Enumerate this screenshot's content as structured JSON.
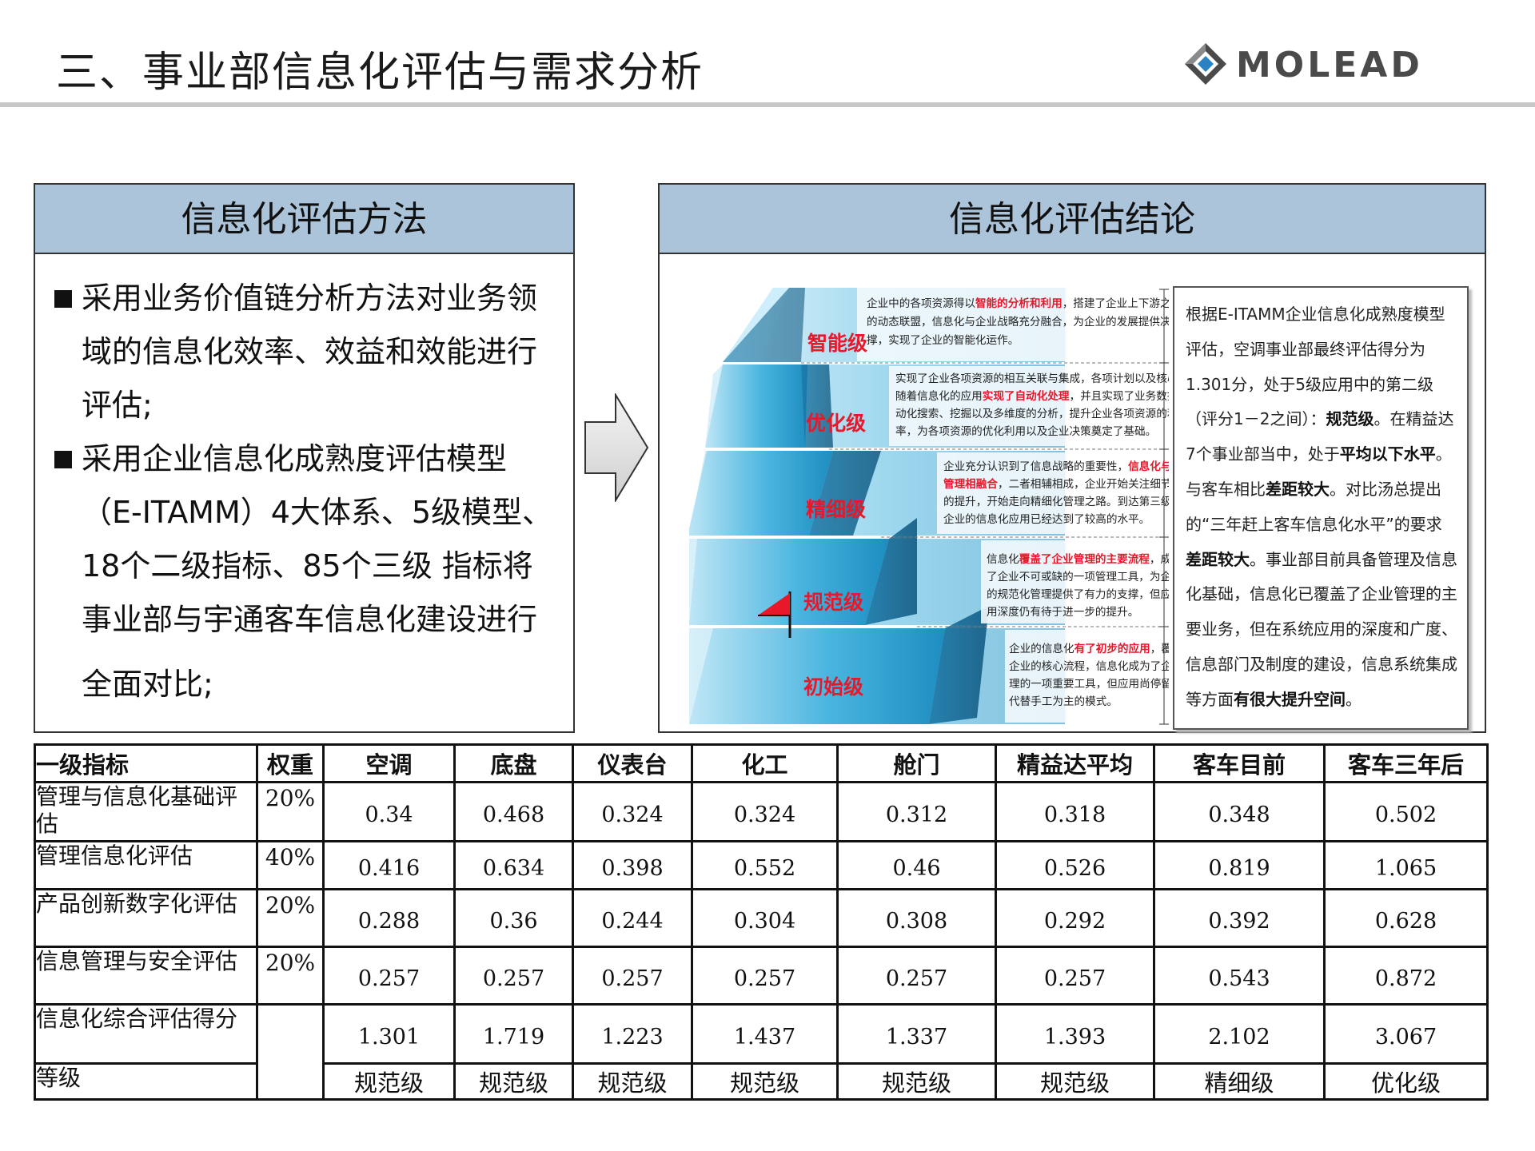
{
  "header": {
    "title": "三、事业部信息化评估与需求分析",
    "logo_text": "MOLEAD"
  },
  "method": {
    "title": "信息化评估方法",
    "bullets": [
      {
        "lines": [
          "采用业务价值链分析方法对业务领",
          "域的信息化效率、效益和效能进行",
          "评估;"
        ]
      },
      {
        "lines": [
          "采用企业信息化成熟度评估模型",
          "（E-ITAMM）4大体系、5级模型、",
          "18个二级指标、85个三级 指标将",
          "事业部与宇通客车信息化建设进行",
          "全面对比;"
        ]
      }
    ]
  },
  "conclusion": {
    "title": "信息化评估结论",
    "pyramid": {
      "levels": [
        {
          "name": "智能级",
          "desc": [
            "企业中的各项资源得以",
            "智能的分析和利用",
            "，搭建了企业上下游之间柔性",
            "的动态联盟，信息化与企业战略充分融合，为企业的发展提供决策支",
            "撑，实现了企业的智能化运作。"
          ]
        },
        {
          "name": "优化级",
          "desc": [
            "实现了企业各项资源的相互关联与集成，各项计划以及核心业务",
            "随着信息化的应用",
            "实现了自动化处理",
            "，并且实现了业务数据的自",
            "动化搜索、挖掘以及多维度的分析，提升企业各项资源的利用",
            "率，为各项资源的优化利用以及企业决策奠定了基础。"
          ]
        },
        {
          "name": "精细级",
          "desc": [
            "企业充分认识到了信息战略的重要性，",
            "信息化与企业",
            "管理相融合",
            "，二者相辅相成，企业开始关注细节管理",
            "的提升，开始走向精细化管理之路。到达第三级后，",
            "企业的信息化应用已经达到了较高的水平。"
          ]
        },
        {
          "name": "规范级",
          "desc": [
            "信息化",
            "覆盖了企业管理的主要流程",
            "，成为",
            "了企业不可或缺的一项管理工具，为企业",
            "的规范化管理提供了有力的支撑，但应",
            "用深度仍有待于进一步的提升。"
          ]
        },
        {
          "name": "初始级",
          "desc": [
            "企业的信息化",
            "有了初步的应用",
            "，覆盖了",
            "企业的核心流程，信息化成为了企业管",
            "理的一项重要工具，但应用尚停留在以",
            "代替手工为主的模式。"
          ]
        }
      ]
    },
    "text": {
      "p1": "根据E-ITAMM企业信息化成熟度模型评估，空调事业部最终评估得分为1.301分，处于5级应用中的第二级（评分1－2之间）：",
      "b1": "规范级",
      "p2": "。在精益达7个事业部当中，处于",
      "b2": "平均以下水平",
      "p3": "。与客车相比",
      "b3": "差距较大",
      "p4": "。对比汤总提出的“三年赶上客车信息化水平”的要求",
      "b4": "差距较大",
      "p5": "。事业部目前具备管理及信息化基础，信息化已覆盖了企业管理的主要业务，但在系统应用的深度和广度、信息部门及制度的建设，信息系统集成等方面",
      "b5": "有很大提升空间",
      "p6": "。"
    }
  },
  "table": {
    "headers": [
      "一级指标",
      "权重",
      "空调",
      "底盘",
      "仪表台",
      "化工",
      "舱门",
      "精益达平均",
      "客车目前",
      "客车三年后"
    ],
    "rows": [
      {
        "name": "管理与信息化基础评估",
        "weight": "20%",
        "values": [
          "0.34",
          "0.468",
          "0.324",
          "0.324",
          "0.312",
          "0.318",
          "0.348",
          "0.502"
        ]
      },
      {
        "name": "管理信息化评估",
        "weight": "40%",
        "values": [
          "0.416",
          "0.634",
          "0.398",
          "0.552",
          "0.46",
          "0.526",
          "0.819",
          "1.065"
        ]
      },
      {
        "name": "产品创新数字化评估",
        "weight": "20%",
        "values": [
          "0.288",
          "0.36",
          "0.244",
          "0.304",
          "0.308",
          "0.292",
          "0.392",
          "0.628"
        ]
      },
      {
        "name": "信息管理与安全评估",
        "weight": "20%",
        "values": [
          "0.257",
          "0.257",
          "0.257",
          "0.257",
          "0.257",
          "0.257",
          "0.543",
          "0.872"
        ]
      },
      {
        "name": "信息化综合评估得分",
        "weight": "",
        "values": [
          "1.301",
          "1.719",
          "1.223",
          "1.437",
          "1.337",
          "1.393",
          "2.102",
          "3.067"
        ]
      }
    ],
    "grade_row": {
      "name": "等级",
      "values": [
        "规范级",
        "规范级",
        "规范级",
        "规范级",
        "规范级",
        "规范级",
        "精细级",
        "优化级"
      ]
    }
  },
  "colors": {
    "panel_header": "#abc4da",
    "highlight_red": "#e8172a",
    "pyramid_blue": "#3aaad6",
    "rule_gray": "#c8c8c8"
  }
}
